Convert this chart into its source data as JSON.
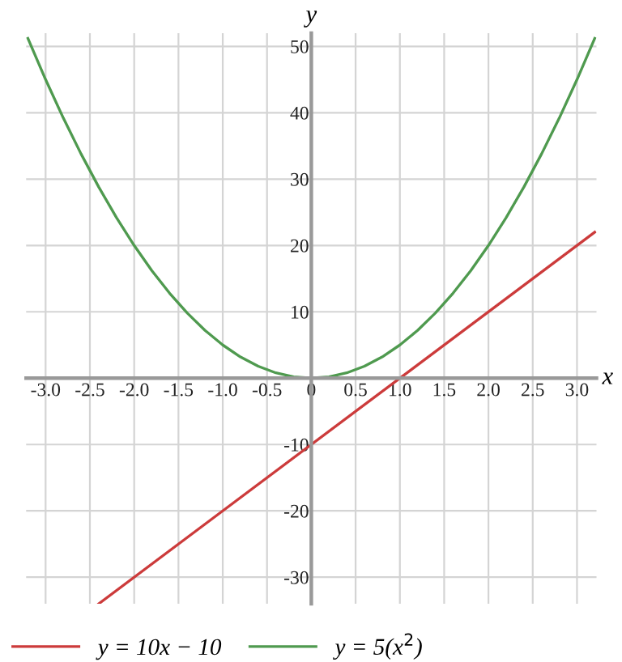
{
  "chart_data": {
    "type": "line",
    "xlabel": "x",
    "ylabel": "y",
    "xlim": [
      -3.22,
      3.22
    ],
    "ylim": [
      -34,
      52
    ],
    "xticks": [
      {
        "value": -3,
        "label": "-3.0"
      },
      {
        "value": -2.5,
        "label": "-2.5"
      },
      {
        "value": -2,
        "label": "-2.0"
      },
      {
        "value": -1.5,
        "label": "-1.5"
      },
      {
        "value": -1,
        "label": "-1.0"
      },
      {
        "value": -0.5,
        "label": "-0.5"
      },
      0,
      {
        "value": 0.5,
        "label": "0.5"
      },
      {
        "value": 1,
        "label": "1.0"
      },
      {
        "value": 1.5,
        "label": "1.5"
      },
      {
        "value": 2,
        "label": "2.0"
      },
      {
        "value": 2.5,
        "label": "2.5"
      },
      {
        "value": 3,
        "label": "3.0"
      }
    ],
    "yticks": [
      -30,
      -20,
      -10,
      {
        "value": 0,
        "label": null
      },
      10,
      20,
      30,
      40,
      50
    ],
    "grid": true,
    "legend": "bottom",
    "series": [
      {
        "name": "y = 10x − 10",
        "color": "#cc3b3b",
        "x": [
          -2.4,
          3.2
        ],
        "values": [
          -34,
          22
        ]
      },
      {
        "name": "y = 5(x$^{2}$)",
        "color": "#4f9a4f",
        "x": [
          -3.2,
          -3.0,
          -2.8,
          -2.6,
          -2.4,
          -2.2,
          -2.0,
          -1.8,
          -1.6,
          -1.4,
          -1.2,
          -1.0,
          -0.8,
          -0.6,
          -0.4,
          -0.2,
          0,
          0.2,
          0.4,
          0.6,
          0.8,
          1.0,
          1.2,
          1.4,
          1.6,
          1.8,
          2.0,
          2.2,
          2.4,
          2.6,
          2.8,
          3.0,
          3.2
        ],
        "values": [
          51.2,
          45,
          39.2,
          33.8,
          28.8,
          24.2,
          20,
          16.2,
          12.8,
          9.8,
          7.2,
          5,
          3.2,
          1.8,
          0.8,
          0.2,
          0,
          0.2,
          0.8,
          1.8,
          3.2,
          5,
          7.2,
          9.8,
          12.8,
          16.2,
          20,
          24.2,
          28.8,
          33.8,
          39.2,
          45,
          51.2
        ]
      }
    ]
  }
}
